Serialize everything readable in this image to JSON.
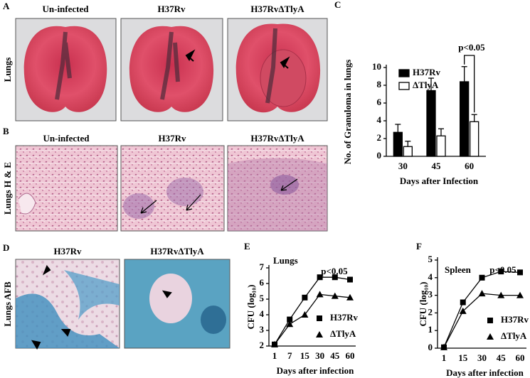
{
  "figure_panels": [
    {
      "label": "A",
      "row_label": "Lungs",
      "titles": [
        "Un-infected",
        "H37Rv",
        "H37RvΔTlyA"
      ]
    },
    {
      "label": "B",
      "row_label": "Lungs H & E",
      "titles": [
        "Un-infected",
        "H37Rv",
        "H37RvΔTlyA"
      ]
    },
    {
      "label": "D",
      "row_label": "Lungs AFB",
      "titles": [
        "H37Rv",
        "H37RvΔTlyA"
      ]
    }
  ],
  "chart_data": [
    {
      "type": "bar",
      "panel_label": "C",
      "y_label": "No. of Granuloma in lungs",
      "x_label": "Days after Infection",
      "annotation": "p<0.05",
      "categories": [
        "30",
        "45",
        "60"
      ],
      "series": [
        {
          "name": "H37Rv",
          "color": "#000000",
          "values": [
            2.7,
            7.4,
            8.4
          ],
          "errors": [
            0.9,
            1.4,
            1.7
          ]
        },
        {
          "name": "ΔTlyA",
          "color": "#ffffff",
          "values": [
            1.1,
            2.3,
            3.9
          ],
          "errors": [
            0.6,
            0.8,
            0.8
          ]
        }
      ],
      "ylim": [
        0,
        10
      ],
      "yticks": [
        0,
        2,
        4,
        6,
        8,
        10
      ],
      "legend": "upper left"
    },
    {
      "type": "line",
      "panel_label": "E",
      "title": "Lungs",
      "y_label": "CFU (log₁₀)",
      "x_label": "Days after infection",
      "annotation": "p<0.05",
      "categories": [
        "1",
        "7",
        "15",
        "30",
        "45",
        "60"
      ],
      "series": [
        {
          "name": "H37Rv",
          "color": "#000000",
          "marker": "square",
          "values": [
            2.1,
            3.7,
            5.1,
            6.4,
            6.4,
            6.25
          ]
        },
        {
          "name": "ΔTlyA",
          "color": "#000000",
          "marker": "triangle",
          "values": [
            2.1,
            3.4,
            4.0,
            5.3,
            5.2,
            5.1
          ]
        }
      ],
      "ylim": [
        2,
        7
      ],
      "yticks": [
        2,
        3,
        4,
        5,
        6,
        7
      ],
      "legend": "lower right"
    },
    {
      "type": "line",
      "panel_label": "F",
      "title": "Spleen",
      "y_label": "CFU (log₁₀)",
      "x_label": "Days after infection",
      "annotation": "p<0.05",
      "categories": [
        "1",
        "15",
        "30",
        "45",
        "60"
      ],
      "series": [
        {
          "name": "H37Rv",
          "color": "#000000",
          "marker": "square",
          "values": [
            0.05,
            2.6,
            4.0,
            4.35,
            4.3
          ]
        },
        {
          "name": "ΔTlyA",
          "color": "#000000",
          "marker": "triangle",
          "values": [
            0.05,
            2.1,
            3.1,
            3.0,
            3.0
          ]
        }
      ],
      "ylim": [
        0,
        5
      ],
      "yticks": [
        0,
        1,
        2,
        3,
        4,
        5
      ],
      "legend": "lower right"
    }
  ]
}
